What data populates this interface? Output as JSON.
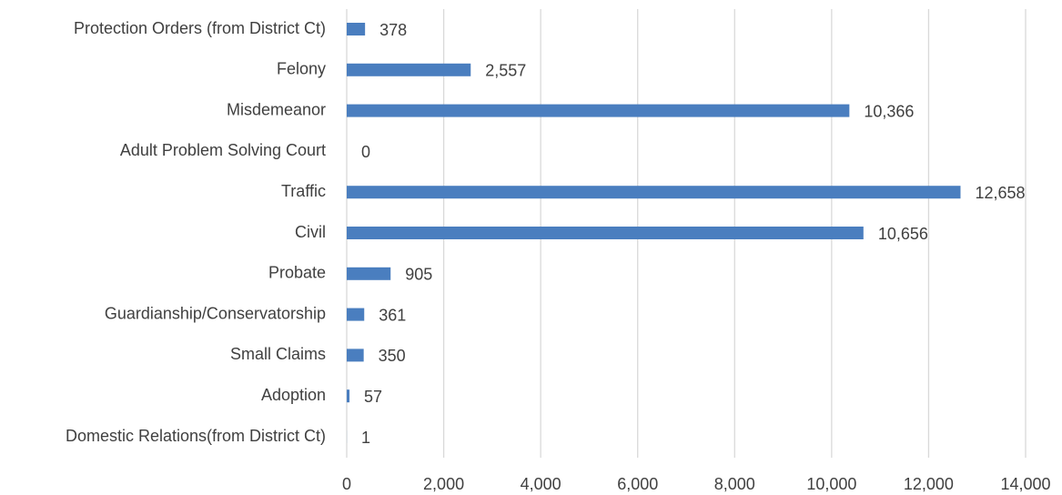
{
  "chart_data": {
    "type": "bar",
    "orientation": "horizontal",
    "categories": [
      "Protection Orders (from District Ct)",
      "Felony",
      "Misdemeanor",
      "Adult Problem Solving Court",
      "Traffic",
      "Civil",
      "Probate",
      "Guardianship/Conservatorship",
      "Small Claims",
      "Adoption",
      "Domestic Relations(from District Ct)"
    ],
    "values": [
      378,
      2557,
      10366,
      0,
      12658,
      10656,
      905,
      361,
      350,
      57,
      1
    ],
    "value_labels": [
      "378",
      "2,557",
      "10,366",
      "0",
      "12,658",
      "10,656",
      "905",
      "361",
      "350",
      "57",
      "1"
    ],
    "color": "#4a7ebf",
    "xlim": [
      0,
      14000
    ],
    "xticks": [
      0,
      {
        "value": 2000,
        "label": "2,000"
      },
      {
        "value": 4000,
        "label": "4,000"
      },
      {
        "value": 6000,
        "label": "6,000"
      },
      {
        "value": 8000,
        "label": "8,000"
      },
      {
        "value": 10000,
        "label": "10,000"
      },
      {
        "value": 12000,
        "label": "12,000"
      },
      {
        "value": 14000,
        "label": "14,000"
      }
    ],
    "grid": true
  }
}
